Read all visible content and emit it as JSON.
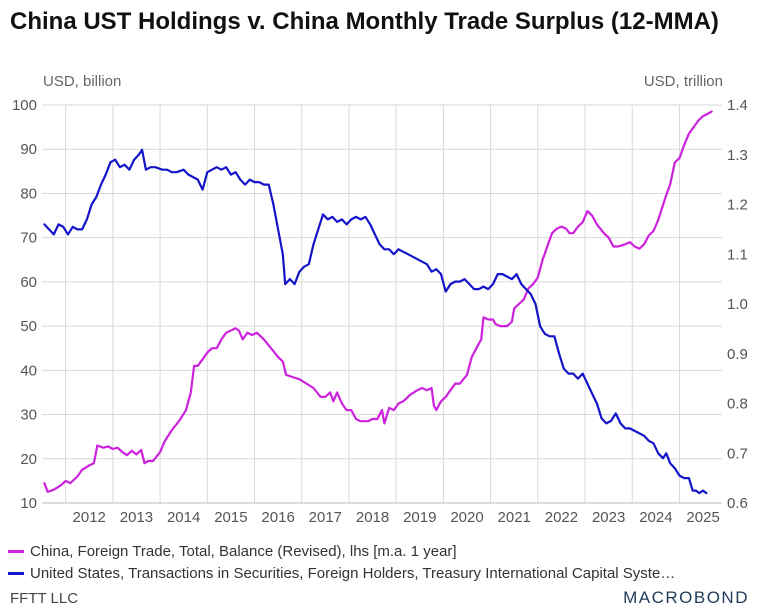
{
  "chart_data": {
    "type": "line",
    "title": "China UST Holdings v. China Monthly Trade Surplus (12-MMA)",
    "y_left": {
      "label": "USD, billion",
      "range": [
        10,
        100
      ],
      "ticks": [
        10,
        20,
        30,
        40,
        50,
        60,
        70,
        80,
        90,
        100
      ]
    },
    "y_right": {
      "label": "USD, trillion",
      "range": [
        0.6,
        1.4
      ],
      "ticks": [
        "0.6",
        "0.7",
        "0.8",
        "0.9",
        "1.0",
        "1.1",
        "1.2",
        "1.3",
        "1.4"
      ]
    },
    "x_range": [
      2011.5,
      2025.9
    ],
    "x_ticks": [
      "2012",
      "2013",
      "2014",
      "2015",
      "2016",
      "2017",
      "2018",
      "2019",
      "2020",
      "2021",
      "2022",
      "2023",
      "2024",
      "2025"
    ],
    "grid": true,
    "legend_position": "bottom",
    "series": [
      {
        "name": "China, Foreign Trade, Total, Balance (Revised), lhs [m.a. 1 year]",
        "axis": "left",
        "color": "#cc22dd",
        "points": [
          [
            2011.55,
            14.5
          ],
          [
            2011.62,
            12.5
          ],
          [
            2011.75,
            13
          ],
          [
            2011.9,
            14
          ],
          [
            2012.0,
            15
          ],
          [
            2012.1,
            14.5
          ],
          [
            2012.25,
            16
          ],
          [
            2012.35,
            17.5
          ],
          [
            2012.5,
            18.5
          ],
          [
            2012.6,
            19
          ],
          [
            2012.67,
            23
          ],
          [
            2012.8,
            22.5
          ],
          [
            2012.9,
            22.8
          ],
          [
            2013.0,
            22.2
          ],
          [
            2013.1,
            22.5
          ],
          [
            2013.2,
            21.5
          ],
          [
            2013.3,
            20.8
          ],
          [
            2013.4,
            21.8
          ],
          [
            2013.5,
            21
          ],
          [
            2013.6,
            22
          ],
          [
            2013.67,
            19
          ],
          [
            2013.75,
            19.5
          ],
          [
            2013.85,
            19.5
          ],
          [
            2014.0,
            21.5
          ],
          [
            2014.1,
            24
          ],
          [
            2014.25,
            26.5
          ],
          [
            2014.4,
            28.5
          ],
          [
            2014.55,
            31
          ],
          [
            2014.65,
            35
          ],
          [
            2014.72,
            41
          ],
          [
            2014.8,
            41
          ],
          [
            2014.9,
            42.5
          ],
          [
            2015.0,
            44
          ],
          [
            2015.1,
            45
          ],
          [
            2015.2,
            45
          ],
          [
            2015.3,
            47
          ],
          [
            2015.4,
            48.5
          ],
          [
            2015.5,
            49
          ],
          [
            2015.6,
            49.5
          ],
          [
            2015.67,
            49
          ],
          [
            2015.75,
            47
          ],
          [
            2015.85,
            48.5
          ],
          [
            2015.95,
            48
          ],
          [
            2016.05,
            48.5
          ],
          [
            2016.2,
            47
          ],
          [
            2016.35,
            45
          ],
          [
            2016.5,
            43
          ],
          [
            2016.6,
            42
          ],
          [
            2016.67,
            39
          ],
          [
            2016.8,
            38.5
          ],
          [
            2016.95,
            38
          ],
          [
            2017.1,
            37
          ],
          [
            2017.25,
            36
          ],
          [
            2017.4,
            34
          ],
          [
            2017.5,
            34
          ],
          [
            2017.6,
            35
          ],
          [
            2017.67,
            33
          ],
          [
            2017.75,
            35
          ],
          [
            2017.85,
            32.5
          ],
          [
            2017.95,
            31
          ],
          [
            2018.05,
            31
          ],
          [
            2018.15,
            29
          ],
          [
            2018.25,
            28.5
          ],
          [
            2018.4,
            28.5
          ],
          [
            2018.5,
            29
          ],
          [
            2018.6,
            29
          ],
          [
            2018.7,
            31
          ],
          [
            2018.75,
            28
          ],
          [
            2018.85,
            31.5
          ],
          [
            2018.95,
            31
          ],
          [
            2019.05,
            32.5
          ],
          [
            2019.15,
            33
          ],
          [
            2019.3,
            34.5
          ],
          [
            2019.45,
            35.5
          ],
          [
            2019.55,
            36
          ],
          [
            2019.65,
            35.5
          ],
          [
            2019.75,
            36
          ],
          [
            2019.8,
            32
          ],
          [
            2019.85,
            31
          ],
          [
            2019.95,
            33
          ],
          [
            2020.05,
            34
          ],
          [
            2020.15,
            35.5
          ],
          [
            2020.25,
            37
          ],
          [
            2020.35,
            37
          ],
          [
            2020.5,
            39
          ],
          [
            2020.6,
            43
          ],
          [
            2020.7,
            45
          ],
          [
            2020.8,
            47
          ],
          [
            2020.85,
            52
          ],
          [
            2020.95,
            51.5
          ],
          [
            2021.05,
            51.5
          ],
          [
            2021.1,
            50.5
          ],
          [
            2021.2,
            50
          ],
          [
            2021.35,
            50
          ],
          [
            2021.45,
            51
          ],
          [
            2021.5,
            54
          ],
          [
            2021.6,
            55
          ],
          [
            2021.7,
            56
          ],
          [
            2021.8,
            58.5
          ],
          [
            2021.9,
            59.5
          ],
          [
            2022.0,
            61
          ],
          [
            2022.1,
            65
          ],
          [
            2022.2,
            68
          ],
          [
            2022.3,
            71
          ],
          [
            2022.4,
            72
          ],
          [
            2022.5,
            72.5
          ],
          [
            2022.6,
            72
          ],
          [
            2022.67,
            71
          ],
          [
            2022.75,
            71
          ],
          [
            2022.85,
            72.5
          ],
          [
            2022.95,
            73.5
          ],
          [
            2023.05,
            76
          ],
          [
            2023.15,
            75
          ],
          [
            2023.25,
            73
          ],
          [
            2023.4,
            71
          ],
          [
            2023.5,
            70
          ],
          [
            2023.6,
            68
          ],
          [
            2023.7,
            68
          ],
          [
            2023.85,
            68.5
          ],
          [
            2023.95,
            69
          ],
          [
            2024.05,
            68
          ],
          [
            2024.15,
            67.5
          ],
          [
            2024.25,
            68.5
          ],
          [
            2024.35,
            70.5
          ],
          [
            2024.45,
            71.5
          ],
          [
            2024.55,
            74
          ],
          [
            2024.7,
            79
          ],
          [
            2024.8,
            82
          ],
          [
            2024.9,
            87
          ],
          [
            2025.0,
            88
          ],
          [
            2025.1,
            91
          ],
          [
            2025.2,
            93.5
          ],
          [
            2025.3,
            95
          ],
          [
            2025.4,
            96.5
          ],
          [
            2025.5,
            97.5
          ],
          [
            2025.6,
            98
          ],
          [
            2025.68,
            98.5
          ]
        ]
      },
      {
        "name": "United States, Transactions in Securities, Foreign Holders, Treasury International Capital Syste…",
        "axis": "right",
        "color": "#1414c8",
        "points": [
          [
            2011.55,
            1.16
          ],
          [
            2011.65,
            1.15
          ],
          [
            2011.75,
            1.14
          ],
          [
            2011.85,
            1.16
          ],
          [
            2011.95,
            1.155
          ],
          [
            2012.05,
            1.14
          ],
          [
            2012.15,
            1.155
          ],
          [
            2012.25,
            1.15
          ],
          [
            2012.35,
            1.15
          ],
          [
            2012.45,
            1.17
          ],
          [
            2012.55,
            1.2
          ],
          [
            2012.65,
            1.215
          ],
          [
            2012.75,
            1.24
          ],
          [
            2012.85,
            1.26
          ],
          [
            2012.95,
            1.285
          ],
          [
            2013.05,
            1.29
          ],
          [
            2013.15,
            1.275
          ],
          [
            2013.25,
            1.28
          ],
          [
            2013.35,
            1.27
          ],
          [
            2013.45,
            1.29
          ],
          [
            2013.55,
            1.3
          ],
          [
            2013.62,
            1.31
          ],
          [
            2013.7,
            1.27
          ],
          [
            2013.8,
            1.275
          ],
          [
            2013.9,
            1.275
          ],
          [
            2014.05,
            1.27
          ],
          [
            2014.15,
            1.27
          ],
          [
            2014.25,
            1.265
          ],
          [
            2014.35,
            1.265
          ],
          [
            2014.5,
            1.27
          ],
          [
            2014.6,
            1.26
          ],
          [
            2014.7,
            1.255
          ],
          [
            2014.8,
            1.25
          ],
          [
            2014.9,
            1.23
          ],
          [
            2015.0,
            1.265
          ],
          [
            2015.1,
            1.27
          ],
          [
            2015.2,
            1.275
          ],
          [
            2015.3,
            1.27
          ],
          [
            2015.4,
            1.275
          ],
          [
            2015.5,
            1.26
          ],
          [
            2015.6,
            1.265
          ],
          [
            2015.7,
            1.25
          ],
          [
            2015.8,
            1.24
          ],
          [
            2015.9,
            1.25
          ],
          [
            2016.0,
            1.245
          ],
          [
            2016.1,
            1.245
          ],
          [
            2016.2,
            1.24
          ],
          [
            2016.3,
            1.24
          ],
          [
            2016.4,
            1.2
          ],
          [
            2016.5,
            1.15
          ],
          [
            2016.6,
            1.1
          ],
          [
            2016.65,
            1.04
          ],
          [
            2016.75,
            1.05
          ],
          [
            2016.85,
            1.04
          ],
          [
            2016.95,
            1.065
          ],
          [
            2017.05,
            1.075
          ],
          [
            2017.15,
            1.08
          ],
          [
            2017.25,
            1.12
          ],
          [
            2017.35,
            1.15
          ],
          [
            2017.45,
            1.18
          ],
          [
            2017.55,
            1.17
          ],
          [
            2017.65,
            1.175
          ],
          [
            2017.75,
            1.165
          ],
          [
            2017.85,
            1.17
          ],
          [
            2017.95,
            1.16
          ],
          [
            2018.05,
            1.17
          ],
          [
            2018.15,
            1.175
          ],
          [
            2018.25,
            1.17
          ],
          [
            2018.35,
            1.175
          ],
          [
            2018.45,
            1.16
          ],
          [
            2018.55,
            1.14
          ],
          [
            2018.65,
            1.12
          ],
          [
            2018.75,
            1.11
          ],
          [
            2018.85,
            1.11
          ],
          [
            2018.95,
            1.1
          ],
          [
            2019.05,
            1.11
          ],
          [
            2019.15,
            1.105
          ],
          [
            2019.25,
            1.1
          ],
          [
            2019.35,
            1.095
          ],
          [
            2019.45,
            1.09
          ],
          [
            2019.55,
            1.085
          ],
          [
            2019.65,
            1.08
          ],
          [
            2019.75,
            1.065
          ],
          [
            2019.85,
            1.07
          ],
          [
            2019.95,
            1.06
          ],
          [
            2020.05,
            1.025
          ],
          [
            2020.15,
            1.04
          ],
          [
            2020.25,
            1.045
          ],
          [
            2020.35,
            1.045
          ],
          [
            2020.45,
            1.05
          ],
          [
            2020.55,
            1.04
          ],
          [
            2020.65,
            1.03
          ],
          [
            2020.75,
            1.03
          ],
          [
            2020.85,
            1.035
          ],
          [
            2020.95,
            1.03
          ],
          [
            2021.05,
            1.04
          ],
          [
            2021.15,
            1.06
          ],
          [
            2021.25,
            1.06
          ],
          [
            2021.35,
            1.055
          ],
          [
            2021.45,
            1.05
          ],
          [
            2021.55,
            1.06
          ],
          [
            2021.65,
            1.04
          ],
          [
            2021.75,
            1.03
          ],
          [
            2021.85,
            1.02
          ],
          [
            2021.95,
            1.0
          ],
          [
            2022.05,
            0.955
          ],
          [
            2022.15,
            0.94
          ],
          [
            2022.25,
            0.935
          ],
          [
            2022.35,
            0.935
          ],
          [
            2022.45,
            0.9
          ],
          [
            2022.55,
            0.87
          ],
          [
            2022.65,
            0.86
          ],
          [
            2022.75,
            0.86
          ],
          [
            2022.85,
            0.85
          ],
          [
            2022.95,
            0.86
          ],
          [
            2023.05,
            0.84
          ],
          [
            2023.15,
            0.82
          ],
          [
            2023.25,
            0.8
          ],
          [
            2023.35,
            0.77
          ],
          [
            2023.45,
            0.76
          ],
          [
            2023.55,
            0.765
          ],
          [
            2023.65,
            0.78
          ],
          [
            2023.75,
            0.76
          ],
          [
            2023.85,
            0.75
          ],
          [
            2023.95,
            0.75
          ],
          [
            2024.05,
            0.745
          ],
          [
            2024.15,
            0.74
          ],
          [
            2024.25,
            0.735
          ],
          [
            2024.35,
            0.725
          ],
          [
            2024.45,
            0.72
          ],
          [
            2024.55,
            0.7
          ],
          [
            2024.65,
            0.69
          ],
          [
            2024.72,
            0.7
          ],
          [
            2024.8,
            0.68
          ],
          [
            2024.9,
            0.67
          ],
          [
            2025.0,
            0.655
          ],
          [
            2025.1,
            0.65
          ],
          [
            2025.2,
            0.65
          ],
          [
            2025.28,
            0.625
          ],
          [
            2025.35,
            0.625
          ],
          [
            2025.42,
            0.62
          ],
          [
            2025.5,
            0.625
          ],
          [
            2025.57,
            0.62
          ]
        ]
      }
    ]
  },
  "footer": {
    "source": "FFTT LLC",
    "brand": "MACROBOND"
  }
}
